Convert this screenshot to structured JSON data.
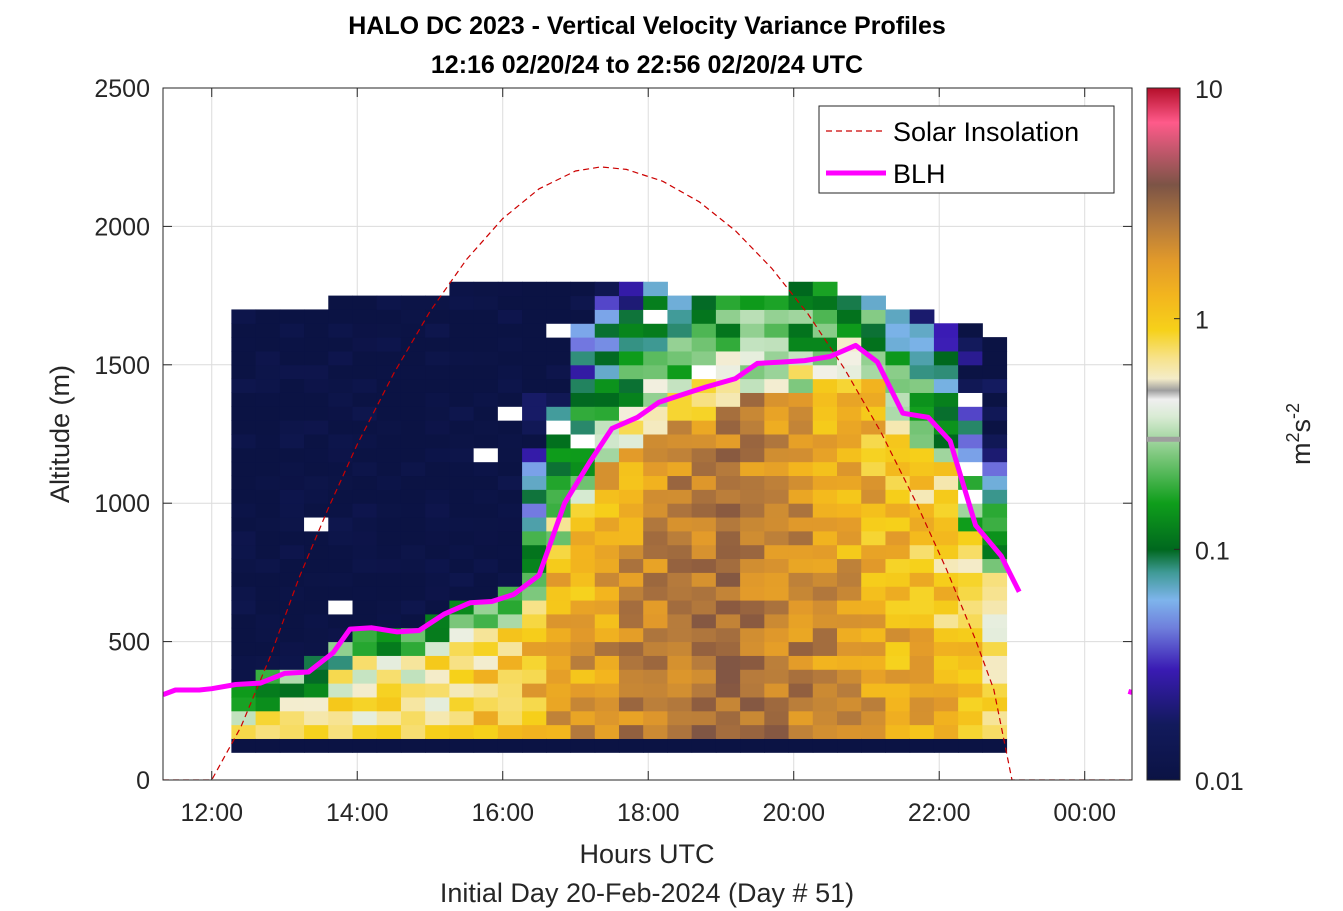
{
  "chart_data": {
    "type": "heatmap",
    "title": "HALO DC 2023 - Vertical Velocity Variance Profiles",
    "subtitle": "12:16 02/20/24 to 22:56 02/20/24  UTC",
    "xlabel": "Hours UTC",
    "xlabel2": "Initial Day 20-Feb-2024 (Day # 51)",
    "ylabel": "Altitude (m)",
    "xlim": [
      11.33,
      24.65
    ],
    "ylim": [
      0,
      2500
    ],
    "x_ticks": [
      12,
      14,
      16,
      18,
      20,
      22,
      24
    ],
    "x_tick_labels": [
      "12:00",
      "14:00",
      "16:00",
      "18:00",
      "20:00",
      "22:00",
      "00:00"
    ],
    "y_ticks": [
      0,
      500,
      1000,
      1500,
      2000,
      2500
    ],
    "y_tick_labels": [
      "0",
      "500",
      "1000",
      "1500",
      "2000",
      "2500"
    ],
    "grid": true,
    "legend_position": "top-right",
    "colorbar": {
      "label": "m²s⁻²",
      "label_base": "m",
      "label_sup1": "2",
      "label_mid": "s",
      "label_sup2": "-2",
      "scale": "log",
      "range": [
        0.01,
        10
      ],
      "ticks": [
        0.01,
        0.1,
        1,
        10
      ],
      "tick_labels": [
        "0.01",
        "0.1",
        "1",
        "10"
      ],
      "marker_value": 0.3
    },
    "heatmap": {
      "time_start": 12.27,
      "time_end": 22.93,
      "time_step": 0.333,
      "alt_step": 50,
      "alt_bottom": 100,
      "floor_band": [
        100,
        150
      ],
      "value_unit": "m2 s-2"
    },
    "series": [
      {
        "name": "Solar Insolation",
        "style": "dashed",
        "color": "#cc0000",
        "x": [
          11.33,
          12.0,
          12.4,
          12.8,
          13.2,
          13.6,
          14.0,
          14.5,
          15.0,
          15.5,
          16.0,
          16.5,
          17.0,
          17.35,
          17.7,
          18.2,
          18.7,
          19.2,
          19.7,
          20.2,
          20.7,
          21.2,
          21.7,
          22.1,
          22.5,
          22.75,
          23.0,
          24.65
        ],
        "y": [
          0,
          0,
          191,
          443,
          730,
          980,
          1212,
          1468,
          1693,
          1880,
          2028,
          2136,
          2200,
          2215,
          2206,
          2163,
          2089,
          1984,
          1848,
          1682,
          1485,
          1256,
          993,
          761,
          506,
          327,
          0,
          0
        ]
      },
      {
        "name": "BLH",
        "style": "solid",
        "color": "#ff00ff",
        "x": [
          11.33,
          11.5,
          11.83,
          12.0,
          12.33,
          12.67,
          13.0,
          13.33,
          13.67,
          13.9,
          14.2,
          14.55,
          14.85,
          15.2,
          15.55,
          15.85,
          16.15,
          16.5,
          16.85,
          17.2,
          17.5,
          17.85,
          18.15,
          18.5,
          18.8,
          19.2,
          19.5,
          19.85,
          20.15,
          20.5,
          20.85,
          21.15,
          21.5,
          21.85,
          22.15,
          22.5,
          22.85,
          23.1
        ],
        "y": [
          308,
          325,
          325,
          330,
          345,
          350,
          385,
          390,
          460,
          545,
          550,
          535,
          540,
          600,
          640,
          645,
          670,
          740,
          1000,
          1150,
          1270,
          1310,
          1365,
          1395,
          1420,
          1450,
          1505,
          1510,
          1515,
          1530,
          1570,
          1510,
          1325,
          1310,
          1225,
          920,
          810,
          680
        ],
        "x2": [
          24.6,
          24.65
        ],
        "y2": [
          320,
          316
        ]
      }
    ]
  }
}
